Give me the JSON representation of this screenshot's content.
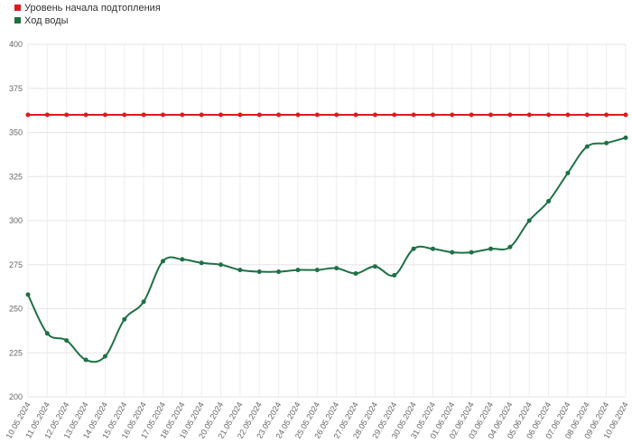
{
  "chart_data": {
    "type": "line",
    "categories": [
      "10.05.2024",
      "11.05.2024",
      "12.05.2024",
      "13.05.2024",
      "14.05.2024",
      "15.05.2024",
      "16.05.2024",
      "17.05.2024",
      "18.05.2024",
      "19.05.2024",
      "20.05.2024",
      "21.05.2024",
      "22.05.2024",
      "23.05.2024",
      "24.05.2024",
      "25.05.2024",
      "26.05.2024",
      "27.05.2024",
      "28.05.2024",
      "29.05.2024",
      "30.05.2024",
      "31.05.2024",
      "01.06.2024",
      "02.06.2024",
      "03.06.2024",
      "04.06.2024",
      "05.06.2024",
      "06.06.2024",
      "07.06.2024",
      "08.06.2024",
      "09.06.2024",
      "10.06.2024"
    ],
    "series": [
      {
        "name": "Уровень начала подтопления",
        "color": "#e0191e",
        "values": [
          360,
          360,
          360,
          360,
          360,
          360,
          360,
          360,
          360,
          360,
          360,
          360,
          360,
          360,
          360,
          360,
          360,
          360,
          360,
          360,
          360,
          360,
          360,
          360,
          360,
          360,
          360,
          360,
          360,
          360,
          360,
          360
        ]
      },
      {
        "name": "Ход воды",
        "color": "#1e7145",
        "values": [
          258,
          236,
          232,
          221,
          223,
          244,
          254,
          277,
          278,
          276,
          275,
          272,
          271,
          271,
          272,
          272,
          273,
          270,
          274,
          269,
          284,
          284,
          282,
          282,
          284,
          285,
          300,
          311,
          327,
          342,
          344,
          347
        ]
      }
    ],
    "ylim": [
      200,
      400
    ],
    "yticks": [
      200,
      225,
      250,
      275,
      300,
      325,
      350,
      375,
      400
    ],
    "grid": true,
    "legend": "top-left"
  }
}
